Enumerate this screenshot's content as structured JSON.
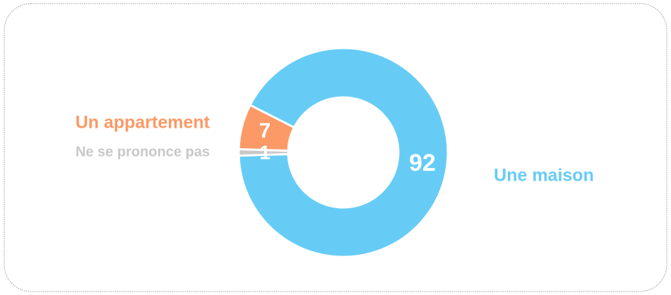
{
  "chart_data": {
    "type": "donut",
    "categories": [
      "Ne se prononce pas",
      "Un appartement",
      "Une maison"
    ],
    "values": [
      1,
      7,
      92
    ],
    "colors": [
      "#c8c8c8",
      "#fb9a67",
      "#66ccf5"
    ]
  }
}
